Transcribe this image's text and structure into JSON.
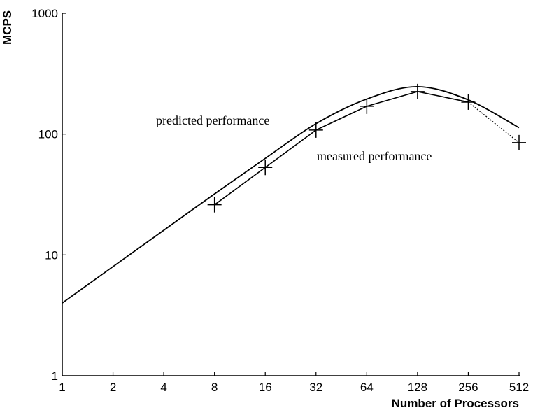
{
  "chart_data": {
    "type": "line",
    "title": "",
    "xlabel": "Number of Processors",
    "ylabel": "MCPS",
    "xscale": "log2",
    "yscale": "log10",
    "xlim": [
      1,
      512
    ],
    "ylim": [
      1,
      1000
    ],
    "x_ticks": [
      "1",
      "2",
      "4",
      "8",
      "16",
      "32",
      "64",
      "128",
      "256",
      "512"
    ],
    "y_ticks": [
      "1",
      "10",
      "100",
      "1000"
    ],
    "grid": false,
    "series": [
      {
        "name": "predicted performance",
        "style": "solid",
        "x": [
          1,
          2,
          4,
          8,
          16,
          32,
          64,
          128,
          256,
          512
        ],
        "values": [
          4,
          8,
          16,
          32,
          63,
          122,
          195,
          247,
          192,
          113
        ]
      },
      {
        "name": "measured performance",
        "style": "solid-with-markers",
        "marker": "+",
        "dotted_last_segment": true,
        "x": [
          8,
          16,
          32,
          64,
          128,
          256,
          512
        ],
        "values": [
          26,
          53,
          108,
          170,
          225,
          184,
          85
        ]
      }
    ],
    "annotations": [
      {
        "text": "predicted performance",
        "near_x": 16,
        "near_y": 150
      },
      {
        "text": "measured performance",
        "near_x": 128,
        "near_y": 80
      }
    ]
  }
}
